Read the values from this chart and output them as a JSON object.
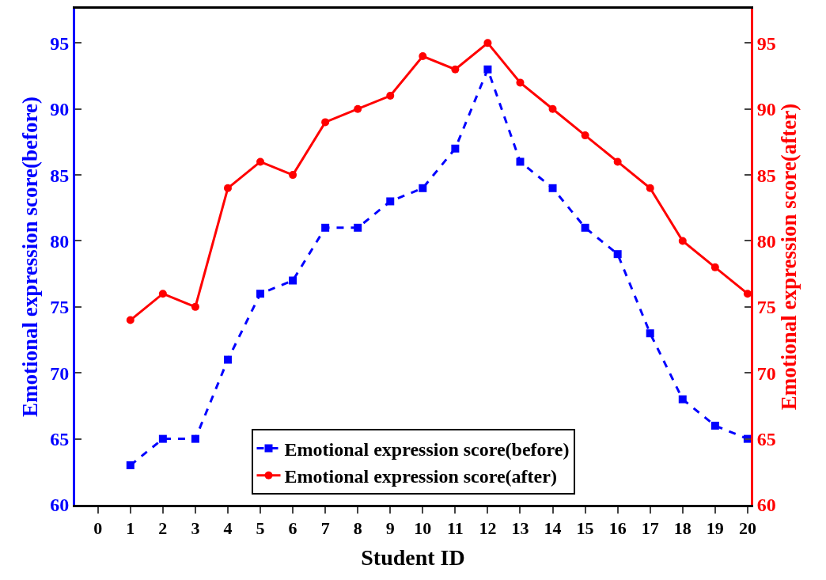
{
  "chart_data": {
    "type": "line",
    "xlabel": "Student ID",
    "ylabel": "Emotional expression score(before)",
    "y2label": "Emotional expression score(after)",
    "x": [
      1,
      2,
      3,
      4,
      5,
      6,
      7,
      8,
      9,
      10,
      11,
      12,
      13,
      14,
      15,
      16,
      17,
      18,
      19,
      20
    ],
    "series": [
      {
        "name": "Emotional expression score(before)",
        "color": "#0000ff",
        "marker": "square",
        "line_style": "dashed",
        "values": [
          63,
          65,
          65,
          71,
          76,
          77,
          81,
          81,
          83,
          84,
          87,
          93,
          86,
          84,
          81,
          79,
          73,
          68,
          66,
          65
        ]
      },
      {
        "name": "Emotional expression score(after)",
        "color": "#ff0000",
        "marker": "circle",
        "line_style": "solid",
        "axis": "y2",
        "values": [
          74,
          76,
          75,
          84,
          86,
          85,
          89,
          90,
          91,
          94,
          93,
          95,
          92,
          90,
          88,
          86,
          84,
          80,
          78,
          76
        ]
      }
    ],
    "xlim": [
      -0.7,
      20.1
    ],
    "xticks": [
      0,
      1,
      2,
      3,
      4,
      5,
      6,
      7,
      8,
      9,
      10,
      11,
      12,
      13,
      14,
      15,
      16,
      17,
      18,
      19,
      20
    ],
    "ylim": [
      60,
      97.6
    ],
    "yticks": [
      60,
      65,
      70,
      75,
      80,
      85,
      90,
      95
    ],
    "y2lim": [
      60,
      97.6
    ],
    "y2ticks": [
      60,
      65,
      70,
      75,
      80,
      85,
      90,
      95
    ],
    "legend": "bottom"
  }
}
